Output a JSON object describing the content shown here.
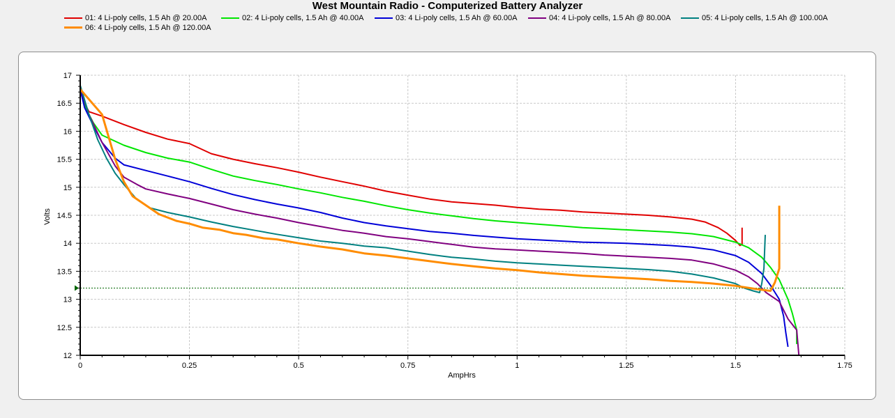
{
  "chart_data": {
    "type": "line",
    "title": "West Mountain Radio - Computerized Battery Analyzer",
    "xlabel": "AmpHrs",
    "ylabel": "Volts",
    "xlim": [
      0,
      1.75
    ],
    "ylim": [
      12,
      17
    ],
    "xticks": [
      "0",
      "0.25",
      "0.5",
      "0.75",
      "1",
      "1.25",
      "1.5",
      "1.75"
    ],
    "yticks": [
      "12",
      "12.5",
      "13",
      "13.5",
      "14",
      "14.5",
      "15",
      "15.5",
      "16",
      "16.5",
      "17"
    ],
    "xtick_values": [
      0,
      0.25,
      0.5,
      0.75,
      1,
      1.25,
      1.5,
      1.75
    ],
    "ytick_values": [
      12,
      12.5,
      13,
      13.5,
      14,
      14.5,
      15,
      15.5,
      16,
      16.5,
      17
    ],
    "grid": true,
    "legend_position": "top",
    "reference_line": {
      "y": 13.2,
      "color": "#006400"
    },
    "series": [
      {
        "name": "01: 4 Li-poly cells, 1.5 Ah @ 20.00A",
        "color": "#e00000",
        "points": [
          [
            0,
            16.75
          ],
          [
            0.01,
            16.5
          ],
          [
            0.02,
            16.35
          ],
          [
            0.05,
            16.27
          ],
          [
            0.1,
            16.12
          ],
          [
            0.15,
            15.98
          ],
          [
            0.2,
            15.86
          ],
          [
            0.25,
            15.78
          ],
          [
            0.3,
            15.6
          ],
          [
            0.35,
            15.5
          ],
          [
            0.4,
            15.42
          ],
          [
            0.45,
            15.35
          ],
          [
            0.5,
            15.27
          ],
          [
            0.55,
            15.18
          ],
          [
            0.6,
            15.1
          ],
          [
            0.65,
            15.02
          ],
          [
            0.7,
            14.93
          ],
          [
            0.75,
            14.86
          ],
          [
            0.8,
            14.79
          ],
          [
            0.85,
            14.74
          ],
          [
            0.9,
            14.71
          ],
          [
            0.95,
            14.68
          ],
          [
            1.0,
            14.64
          ],
          [
            1.05,
            14.61
          ],
          [
            1.1,
            14.59
          ],
          [
            1.15,
            14.56
          ],
          [
            1.2,
            14.54
          ],
          [
            1.25,
            14.52
          ],
          [
            1.3,
            14.5
          ],
          [
            1.35,
            14.47
          ],
          [
            1.4,
            14.43
          ],
          [
            1.43,
            14.38
          ],
          [
            1.46,
            14.28
          ],
          [
            1.48,
            14.18
          ],
          [
            1.5,
            14.05
          ],
          [
            1.51,
            13.96
          ],
          [
            1.515,
            13.98
          ],
          [
            1.515,
            14.28
          ]
        ]
      },
      {
        "name": "02: 4 Li-poly cells, 1.5 Ah @ 40.00A",
        "color": "#00e600",
        "points": [
          [
            0,
            16.75
          ],
          [
            0.01,
            16.45
          ],
          [
            0.03,
            16.15
          ],
          [
            0.05,
            15.93
          ],
          [
            0.1,
            15.75
          ],
          [
            0.15,
            15.62
          ],
          [
            0.2,
            15.52
          ],
          [
            0.25,
            15.45
          ],
          [
            0.3,
            15.32
          ],
          [
            0.35,
            15.2
          ],
          [
            0.4,
            15.12
          ],
          [
            0.45,
            15.05
          ],
          [
            0.5,
            14.97
          ],
          [
            0.55,
            14.9
          ],
          [
            0.6,
            14.82
          ],
          [
            0.65,
            14.75
          ],
          [
            0.7,
            14.67
          ],
          [
            0.75,
            14.6
          ],
          [
            0.8,
            14.54
          ],
          [
            0.85,
            14.49
          ],
          [
            0.9,
            14.44
          ],
          [
            0.95,
            14.4
          ],
          [
            1.0,
            14.37
          ],
          [
            1.05,
            14.34
          ],
          [
            1.1,
            14.31
          ],
          [
            1.15,
            14.28
          ],
          [
            1.2,
            14.26
          ],
          [
            1.25,
            14.24
          ],
          [
            1.3,
            14.22
          ],
          [
            1.35,
            14.2
          ],
          [
            1.4,
            14.17
          ],
          [
            1.45,
            14.12
          ],
          [
            1.5,
            14.02
          ],
          [
            1.53,
            13.92
          ],
          [
            1.56,
            13.75
          ],
          [
            1.58,
            13.57
          ],
          [
            1.6,
            13.35
          ],
          [
            1.62,
            13.0
          ],
          [
            1.63,
            12.75
          ],
          [
            1.64,
            12.45
          ],
          [
            1.64,
            12.2
          ]
        ]
      },
      {
        "name": "03: 4 Li-poly cells, 1.5 Ah @ 60.00A",
        "color": "#0000d8",
        "points": [
          [
            0,
            16.75
          ],
          [
            0.01,
            16.42
          ],
          [
            0.03,
            16.1
          ],
          [
            0.05,
            15.8
          ],
          [
            0.08,
            15.52
          ],
          [
            0.1,
            15.4
          ],
          [
            0.15,
            15.3
          ],
          [
            0.2,
            15.2
          ],
          [
            0.25,
            15.1
          ],
          [
            0.3,
            14.98
          ],
          [
            0.35,
            14.87
          ],
          [
            0.4,
            14.78
          ],
          [
            0.45,
            14.7
          ],
          [
            0.5,
            14.63
          ],
          [
            0.55,
            14.55
          ],
          [
            0.6,
            14.45
          ],
          [
            0.65,
            14.37
          ],
          [
            0.7,
            14.31
          ],
          [
            0.75,
            14.26
          ],
          [
            0.8,
            14.21
          ],
          [
            0.85,
            14.18
          ],
          [
            0.9,
            14.14
          ],
          [
            0.95,
            14.11
          ],
          [
            1.0,
            14.08
          ],
          [
            1.05,
            14.06
          ],
          [
            1.1,
            14.04
          ],
          [
            1.15,
            14.02
          ],
          [
            1.2,
            14.01
          ],
          [
            1.25,
            14.0
          ],
          [
            1.3,
            13.98
          ],
          [
            1.35,
            13.96
          ],
          [
            1.4,
            13.93
          ],
          [
            1.45,
            13.88
          ],
          [
            1.5,
            13.78
          ],
          [
            1.53,
            13.66
          ],
          [
            1.56,
            13.46
          ],
          [
            1.58,
            13.25
          ],
          [
            1.6,
            13.0
          ],
          [
            1.61,
            12.7
          ],
          [
            1.615,
            12.4
          ],
          [
            1.62,
            12.15
          ]
        ]
      },
      {
        "name": "04: 4 Li-poly cells, 1.5 Ah @ 80.00A",
        "color": "#800080",
        "points": [
          [
            0,
            16.78
          ],
          [
            0.02,
            16.3
          ],
          [
            0.05,
            15.8
          ],
          [
            0.08,
            15.38
          ],
          [
            0.1,
            15.18
          ],
          [
            0.13,
            15.05
          ],
          [
            0.15,
            14.97
          ],
          [
            0.2,
            14.88
          ],
          [
            0.25,
            14.8
          ],
          [
            0.3,
            14.7
          ],
          [
            0.35,
            14.6
          ],
          [
            0.4,
            14.52
          ],
          [
            0.45,
            14.45
          ],
          [
            0.5,
            14.37
          ],
          [
            0.55,
            14.3
          ],
          [
            0.6,
            14.23
          ],
          [
            0.65,
            14.18
          ],
          [
            0.7,
            14.12
          ],
          [
            0.75,
            14.08
          ],
          [
            0.8,
            14.03
          ],
          [
            0.85,
            13.98
          ],
          [
            0.9,
            13.93
          ],
          [
            0.95,
            13.9
          ],
          [
            1.0,
            13.88
          ],
          [
            1.05,
            13.86
          ],
          [
            1.1,
            13.84
          ],
          [
            1.15,
            13.82
          ],
          [
            1.2,
            13.79
          ],
          [
            1.25,
            13.77
          ],
          [
            1.3,
            13.75
          ],
          [
            1.35,
            13.73
          ],
          [
            1.4,
            13.7
          ],
          [
            1.45,
            13.63
          ],
          [
            1.5,
            13.52
          ],
          [
            1.53,
            13.4
          ],
          [
            1.55,
            13.28
          ],
          [
            1.57,
            13.12
          ],
          [
            1.6,
            12.96
          ],
          [
            1.62,
            12.65
          ],
          [
            1.64,
            12.45
          ],
          [
            1.645,
            12.0
          ]
        ]
      },
      {
        "name": "05: 4 Li-poly cells, 1.5 Ah @ 100.00A",
        "color": "#008080",
        "points": [
          [
            0,
            16.82
          ],
          [
            0.02,
            16.3
          ],
          [
            0.04,
            15.85
          ],
          [
            0.06,
            15.52
          ],
          [
            0.08,
            15.25
          ],
          [
            0.1,
            15.05
          ],
          [
            0.13,
            14.78
          ],
          [
            0.16,
            14.63
          ],
          [
            0.2,
            14.55
          ],
          [
            0.25,
            14.47
          ],
          [
            0.3,
            14.38
          ],
          [
            0.35,
            14.3
          ],
          [
            0.4,
            14.23
          ],
          [
            0.45,
            14.16
          ],
          [
            0.5,
            14.1
          ],
          [
            0.55,
            14.04
          ],
          [
            0.6,
            14.0
          ],
          [
            0.65,
            13.95
          ],
          [
            0.7,
            13.92
          ],
          [
            0.75,
            13.86
          ],
          [
            0.8,
            13.8
          ],
          [
            0.85,
            13.75
          ],
          [
            0.9,
            13.72
          ],
          [
            0.95,
            13.68
          ],
          [
            1.0,
            13.65
          ],
          [
            1.05,
            13.63
          ],
          [
            1.1,
            13.61
          ],
          [
            1.15,
            13.59
          ],
          [
            1.2,
            13.57
          ],
          [
            1.25,
            13.55
          ],
          [
            1.3,
            13.53
          ],
          [
            1.35,
            13.5
          ],
          [
            1.4,
            13.45
          ],
          [
            1.45,
            13.38
          ],
          [
            1.5,
            13.28
          ],
          [
            1.52,
            13.2
          ],
          [
            1.54,
            13.15
          ],
          [
            1.555,
            13.12
          ],
          [
            1.56,
            13.28
          ],
          [
            1.565,
            13.55
          ],
          [
            1.568,
            14.15
          ]
        ]
      },
      {
        "name": "06: 4 Li-poly cells, 1.5 Ah @ 120.00A",
        "color": "#ff8c00",
        "points": [
          [
            0,
            16.75
          ],
          [
            0.05,
            16.3
          ],
          [
            0.08,
            15.5
          ],
          [
            0.1,
            15.1
          ],
          [
            0.12,
            14.84
          ],
          [
            0.15,
            14.68
          ],
          [
            0.18,
            14.52
          ],
          [
            0.22,
            14.4
          ],
          [
            0.25,
            14.35
          ],
          [
            0.28,
            14.28
          ],
          [
            0.32,
            14.24
          ],
          [
            0.35,
            14.18
          ],
          [
            0.38,
            14.15
          ],
          [
            0.42,
            14.09
          ],
          [
            0.45,
            14.07
          ],
          [
            0.5,
            14.0
          ],
          [
            0.55,
            13.94
          ],
          [
            0.6,
            13.89
          ],
          [
            0.65,
            13.82
          ],
          [
            0.7,
            13.78
          ],
          [
            0.75,
            13.73
          ],
          [
            0.8,
            13.68
          ],
          [
            0.85,
            13.63
          ],
          [
            0.9,
            13.59
          ],
          [
            0.95,
            13.55
          ],
          [
            1.0,
            13.52
          ],
          [
            1.05,
            13.48
          ],
          [
            1.1,
            13.45
          ],
          [
            1.15,
            13.42
          ],
          [
            1.2,
            13.4
          ],
          [
            1.25,
            13.38
          ],
          [
            1.3,
            13.36
          ],
          [
            1.35,
            13.33
          ],
          [
            1.4,
            13.31
          ],
          [
            1.45,
            13.28
          ],
          [
            1.5,
            13.24
          ],
          [
            1.55,
            13.18
          ],
          [
            1.58,
            13.15
          ],
          [
            1.59,
            13.3
          ],
          [
            1.6,
            13.55
          ],
          [
            1.6,
            14.67
          ]
        ]
      }
    ]
  }
}
